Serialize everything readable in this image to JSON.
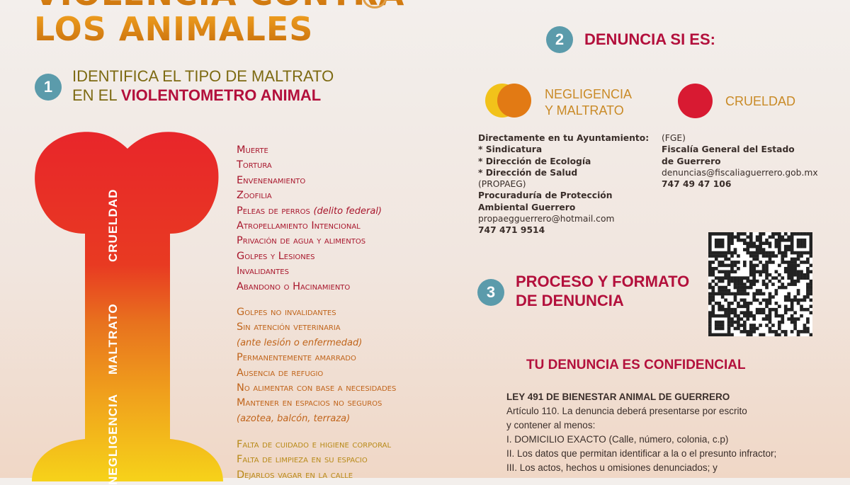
{
  "title": {
    "line1": "VIOLENCIA CONTRA",
    "line2": "LOS ANIMALES"
  },
  "step1": {
    "number": "1",
    "line1": "IDENTIFICA EL TIPO DE MALTRATO",
    "line2_prefix": "EN EL ",
    "line2_bold": "VIOLENTOMETRO ANIMAL"
  },
  "violentometro": {
    "levels": [
      {
        "label": "CRUELDAD",
        "color": "#e8262a",
        "items": [
          "Muerte",
          "Tortura",
          "Envenenamiento",
          "Zoofilia",
          "Peleas de perros",
          "Atropellamiento Intencional",
          "Privación de agua y alimentos",
          "Golpes y Lesiones",
          "Invalidantes",
          "Abandono o Hacinamiento"
        ],
        "note_peleas": "(delito federal)"
      },
      {
        "label": "MALTRATO",
        "color": "#e8731e",
        "items": [
          "Golpes no invalidantes",
          "Sin atención veterinaria",
          "(ante lesión o enfermedad)",
          "Permanentemente amarrado",
          "Ausencia de refugio",
          "No alimentar con base a necesidades",
          "Mantener en espacios no seguros",
          "(azotea, balcón, terraza)"
        ]
      },
      {
        "label": "NEGLIGENCIA",
        "color": "#f2c21a",
        "items": [
          "Falta de cuidado e higiene corporal",
          "Falta de limpieza en su espacio",
          "Dejarlos vagar en la calle"
        ]
      }
    ]
  },
  "step2": {
    "number": "2",
    "heading": "DENUNCIA SI ES:",
    "legend": [
      {
        "label_line1": "NEGLIGENCIA",
        "label_line2": "Y MALTRATO",
        "colors": [
          "#f2c21a",
          "#e27a14"
        ]
      },
      {
        "label": "CRUELDAD",
        "color": "#d81a32"
      }
    ],
    "ayuntamiento": {
      "intro": "Directamente en tu Ayuntamiento:",
      "items": [
        "* Sindicatura",
        "* Dirección de Ecología",
        "* Dirección de Salud"
      ],
      "acronym": "(PROPAEG)",
      "name1": "Procuraduría de Protección",
      "name2": "Ambiental Guerrero",
      "email": "propaegguerrero@hotmail.com",
      "phone": "747 471 9514"
    },
    "fiscalia": {
      "acronym": "(FGE)",
      "name1": "Fiscalía General del Estado",
      "name2": "de Guerrero",
      "email": "denuncias@fiscaliaguerrero.gob.mx",
      "phone": "747 49 47 106"
    }
  },
  "step3": {
    "number": "3",
    "line1": "PROCESO Y FORMATO",
    "line2": "DE DENUNCIA",
    "qr_icon": "qr-code"
  },
  "confidential": "TU DENUNCIA ES CONFIDENCIAL",
  "law": {
    "title": "LEY 491 DE BIENESTAR ANIMAL DE GUERRERO",
    "lines": [
      "Artículo 110. La denuncia deberá presentarse por escrito",
      "y contener al menos:",
      "I. DOMICILIO EXACTO (Calle, número, colonia, c.p)",
      "II. Los datos que permitan identificar a la o el presunto infractor;",
      "III. Los actos, hechos u omisiones denunciados; y"
    ]
  }
}
